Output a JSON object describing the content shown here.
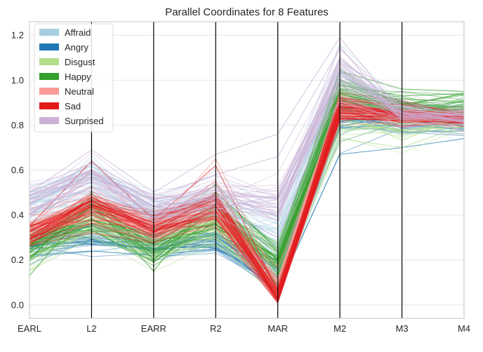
{
  "chart_data": {
    "type": "parallel_coordinates",
    "title": "Parallel Coordinates for 8 Features",
    "axes": [
      "EARL",
      "L2",
      "EARR",
      "R2",
      "MAR",
      "M2",
      "M3",
      "M4"
    ],
    "ylim": [
      -0.06,
      1.26
    ],
    "yticks": [
      "0.0",
      "0.2",
      "0.4",
      "0.6",
      "0.8",
      "1.0",
      "1.2"
    ],
    "grid": true,
    "legend_position": "top-left",
    "series": [
      {
        "name": "Affraid",
        "color": "#a6cee3",
        "mean": [
          0.43,
          0.52,
          0.4,
          0.42,
          0.3,
          0.97,
          0.86,
          0.84
        ],
        "spread": [
          0.06,
          0.08,
          0.06,
          0.07,
          0.1,
          0.08,
          0.04,
          0.03
        ],
        "lines": [
          [
            0.47,
            0.58,
            0.44,
            0.47,
            0.26,
            1.02,
            0.87,
            0.85
          ],
          [
            0.4,
            0.49,
            0.37,
            0.38,
            0.34,
            0.93,
            0.84,
            0.83
          ],
          [
            0.5,
            0.62,
            0.46,
            0.5,
            0.39,
            1.09,
            0.89,
            0.86
          ],
          [
            0.37,
            0.45,
            0.34,
            0.35,
            0.22,
            0.88,
            0.83,
            0.82
          ]
        ]
      },
      {
        "name": "Angry",
        "color": "#1f78b4",
        "mean": [
          0.27,
          0.31,
          0.26,
          0.28,
          0.13,
          0.84,
          0.82,
          0.8
        ],
        "spread": [
          0.05,
          0.04,
          0.04,
          0.03,
          0.06,
          0.06,
          0.04,
          0.03
        ],
        "lines": [
          [
            0.25,
            0.27,
            0.25,
            0.26,
            0.07,
            0.67,
            0.7,
            0.74
          ],
          [
            0.3,
            0.35,
            0.29,
            0.31,
            0.2,
            0.88,
            0.83,
            0.81
          ],
          [
            0.22,
            0.24,
            0.22,
            0.25,
            0.1,
            0.79,
            0.8,
            0.78
          ],
          [
            0.33,
            0.36,
            0.31,
            0.32,
            0.17,
            0.91,
            0.85,
            0.82
          ]
        ]
      },
      {
        "name": "Disgust",
        "color": "#b2df8a",
        "mean": [
          0.25,
          0.37,
          0.25,
          0.33,
          0.15,
          0.85,
          0.8,
          0.82
        ],
        "spread": [
          0.06,
          0.05,
          0.05,
          0.05,
          0.06,
          0.08,
          0.05,
          0.04
        ],
        "lines": [
          [
            0.15,
            0.3,
            0.2,
            0.3,
            0.1,
            0.74,
            0.7,
            0.8
          ],
          [
            0.28,
            0.41,
            0.28,
            0.35,
            0.18,
            0.9,
            0.82,
            0.84
          ],
          [
            0.22,
            0.33,
            0.22,
            0.31,
            0.13,
            0.8,
            0.78,
            0.79
          ],
          [
            0.31,
            0.44,
            0.3,
            0.38,
            0.21,
            0.95,
            0.85,
            0.86
          ]
        ]
      },
      {
        "name": "Happy",
        "color": "#33a02c",
        "mean": [
          0.24,
          0.4,
          0.26,
          0.4,
          0.2,
          0.94,
          0.87,
          0.88
        ],
        "spread": [
          0.06,
          0.06,
          0.06,
          0.06,
          0.05,
          0.05,
          0.05,
          0.04
        ],
        "lines": [
          [
            0.13,
            0.45,
            0.15,
            0.5,
            0.25,
            1.04,
            0.96,
            0.95
          ],
          [
            0.3,
            0.38,
            0.3,
            0.36,
            0.18,
            0.92,
            0.85,
            0.86
          ],
          [
            0.2,
            0.5,
            0.2,
            0.44,
            0.14,
            0.98,
            0.93,
            0.94
          ],
          [
            0.27,
            0.35,
            0.28,
            0.34,
            0.22,
            0.88,
            0.82,
            0.83
          ]
        ]
      },
      {
        "name": "Neutral",
        "color": "#fb9a99",
        "mean": [
          0.33,
          0.43,
          0.33,
          0.42,
          0.06,
          0.86,
          0.84,
          0.83
        ],
        "spread": [
          0.04,
          0.06,
          0.04,
          0.05,
          0.05,
          0.05,
          0.03,
          0.03
        ],
        "lines": [
          [
            0.36,
            0.48,
            0.36,
            0.46,
            0.05,
            0.89,
            0.85,
            0.84
          ],
          [
            0.3,
            0.4,
            0.3,
            0.39,
            0.08,
            0.83,
            0.82,
            0.82
          ],
          [
            0.34,
            0.6,
            0.34,
            0.65,
            0.1,
            0.87,
            0.86,
            0.85
          ],
          [
            0.32,
            0.44,
            0.32,
            0.43,
            0.04,
            0.85,
            0.83,
            0.83
          ]
        ]
      },
      {
        "name": "Sad",
        "color": "#e31a1c",
        "mean": [
          0.31,
          0.44,
          0.33,
          0.45,
          0.04,
          0.86,
          0.85,
          0.83
        ],
        "spread": [
          0.03,
          0.05,
          0.04,
          0.05,
          0.03,
          0.04,
          0.03,
          0.02
        ],
        "lines": [
          [
            0.33,
            0.46,
            0.35,
            0.47,
            0.02,
            0.88,
            0.87,
            0.85
          ],
          [
            0.29,
            0.42,
            0.31,
            0.44,
            0.03,
            0.84,
            0.84,
            0.83
          ],
          [
            0.35,
            0.64,
            0.38,
            0.62,
            0.06,
            0.91,
            0.89,
            0.86
          ],
          [
            0.28,
            0.4,
            0.3,
            0.42,
            0.02,
            0.83,
            0.82,
            0.81
          ]
        ]
      },
      {
        "name": "Surprised",
        "color": "#cab2d6",
        "mean": [
          0.45,
          0.58,
          0.43,
          0.5,
          0.43,
          1.04,
          0.86,
          0.83
        ],
        "spread": [
          0.05,
          0.06,
          0.05,
          0.06,
          0.09,
          0.07,
          0.04,
          0.03
        ],
        "lines": [
          [
            0.5,
            0.69,
            0.5,
            0.67,
            0.76,
            1.19,
            0.85,
            0.82
          ],
          [
            0.42,
            0.55,
            0.41,
            0.46,
            0.4,
            1.1,
            0.87,
            0.84
          ],
          [
            0.52,
            0.63,
            0.48,
            0.58,
            0.66,
            1.14,
            0.88,
            0.85
          ],
          [
            0.4,
            0.52,
            0.39,
            0.44,
            0.3,
            0.98,
            0.84,
            0.82
          ]
        ]
      }
    ]
  }
}
